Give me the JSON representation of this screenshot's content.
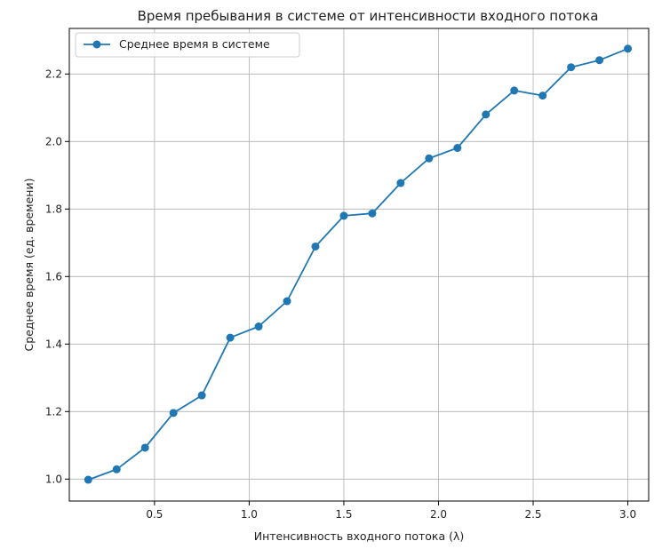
{
  "chart_data": {
    "type": "line",
    "title": "Время пребывания в системе от интенсивности входного потока",
    "xlabel": "Интенсивность входного потока (λ)",
    "ylabel": "Среднее время (ед. времени)",
    "xlim": [
      0.05,
      3.11
    ],
    "ylim": [
      0.935,
      2.335
    ],
    "x_ticks": [
      "0.5",
      "1.0",
      "1.5",
      "2.0",
      "2.5",
      "3.0"
    ],
    "y_ticks": [
      "1.0",
      "1.2",
      "1.4",
      "1.6",
      "1.8",
      "2.0",
      "2.2"
    ],
    "grid": true,
    "legend_position": "top-left",
    "series": [
      {
        "name": "Среднее время в системе",
        "color": "#1f77b4",
        "marker": "circle",
        "x": [
          0.15,
          0.3,
          0.45,
          0.6,
          0.75,
          0.9,
          1.05,
          1.2,
          1.35,
          1.5,
          1.65,
          1.8,
          1.95,
          2.1,
          2.25,
          2.4,
          2.55,
          2.7,
          2.85,
          3.0
        ],
        "y": [
          0.998,
          1.029,
          1.093,
          1.196,
          1.248,
          1.419,
          1.452,
          1.527,
          1.689,
          1.78,
          1.787,
          1.877,
          1.95,
          1.981,
          2.08,
          2.151,
          2.136,
          2.22,
          2.241,
          2.275
        ]
      }
    ]
  }
}
